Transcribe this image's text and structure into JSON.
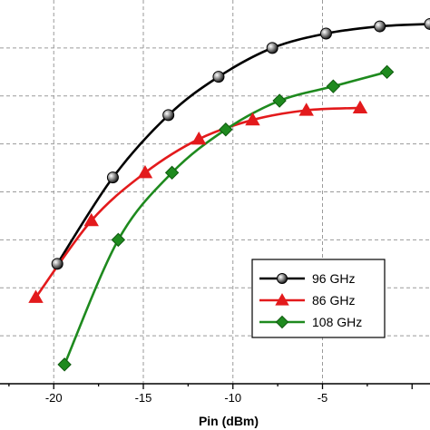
{
  "chart_data": {
    "type": "line",
    "title": "",
    "xlabel": "Pin (dBm)",
    "ylabel": "",
    "xlim": [
      -23,
      1
    ],
    "ylim": [
      0,
      8
    ],
    "x_ticks": [
      -20,
      -15,
      -10,
      -5
    ],
    "x_tick_labels": [
      "-20",
      "-15",
      "-10",
      "-5"
    ],
    "y_gridlines": [
      1,
      2,
      3,
      4,
      5,
      6,
      7
    ],
    "grid": true,
    "legend_position": "bottom-right",
    "series": [
      {
        "name": "96 GHz",
        "color": "#000000",
        "marker": "sphere",
        "x": [
          -19.8,
          -16.7,
          -13.6,
          -10.8,
          -7.8,
          -4.8,
          -1.8,
          1.0
        ],
        "y": [
          2.5,
          4.3,
          5.6,
          6.4,
          7.0,
          7.3,
          7.45,
          7.5
        ]
      },
      {
        "name": "86 GHz",
        "color": "#e31a1c",
        "marker": "triangle",
        "x": [
          -21.0,
          -17.9,
          -14.9,
          -11.9,
          -8.9,
          -5.9,
          -2.9
        ],
        "y": [
          1.8,
          3.4,
          4.4,
          5.1,
          5.5,
          5.7,
          5.75
        ]
      },
      {
        "name": "108 GHz",
        "color": "#1e8a1e",
        "marker": "diamond",
        "x": [
          -19.4,
          -16.4,
          -13.4,
          -10.4,
          -7.4,
          -4.4,
          -1.4
        ],
        "y": [
          0.4,
          3.0,
          4.4,
          5.3,
          5.9,
          6.2,
          6.5
        ]
      }
    ]
  }
}
